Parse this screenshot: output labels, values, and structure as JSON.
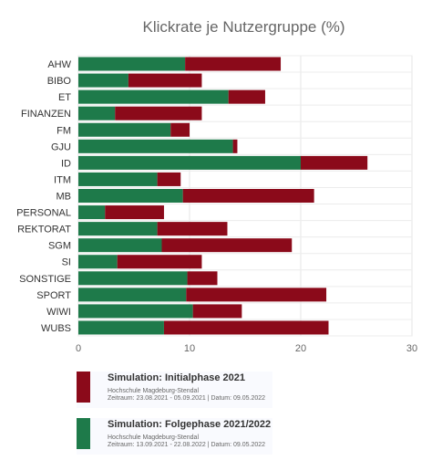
{
  "chart_data": {
    "type": "bar",
    "orientation": "horizontal",
    "stacked": true,
    "title": "Klickrate je Nutzergruppe (%)",
    "categories": [
      "AHW",
      "BIBO",
      "ET",
      "FINANZEN",
      "FM",
      "GJU",
      "ID",
      "ITM",
      "MB",
      "PERSONAL",
      "REKTORAT",
      "SGM",
      "SI",
      "SONSTIGE",
      "SPORT",
      "WIWI",
      "WUBS"
    ],
    "series": [
      {
        "name": "Simulation: Folgephase 2021/2022",
        "color": "#1e7a4a",
        "values": [
          9.6,
          4.5,
          13.5,
          3.3,
          8.3,
          13.9,
          20.0,
          7.1,
          9.4,
          2.4,
          7.1,
          7.5,
          3.5,
          9.8,
          9.7,
          10.3,
          7.7
        ]
      },
      {
        "name": "Simulation: Initialphase 2021",
        "color": "#8b0a1a",
        "values": [
          8.6,
          6.6,
          3.3,
          7.8,
          1.7,
          0.4,
          6.0,
          2.1,
          11.8,
          5.3,
          6.3,
          11.7,
          7.6,
          2.7,
          12.6,
          4.4,
          14.8
        ]
      }
    ],
    "xlim": [
      0,
      30
    ],
    "xticks": [
      0,
      10,
      20,
      30
    ],
    "grid": true,
    "legend": "bottom"
  },
  "legend": [
    {
      "title": "Simulation: Initialphase 2021",
      "color": "#8b0a1a",
      "subtitle": "Hochschule Magdeburg-Stendal",
      "meta": "Zeitraum: 23.08.2021 - 05.09.2021 | Datum: 09.05.2022"
    },
    {
      "title": "Simulation: Folgephase 2021/2022",
      "color": "#1e7a4a",
      "subtitle": "Hochschule Magdeburg-Stendal",
      "meta": "Zeitraum: 13.09.2021 - 22.08.2022 | Datum: 09.05.2022"
    }
  ]
}
